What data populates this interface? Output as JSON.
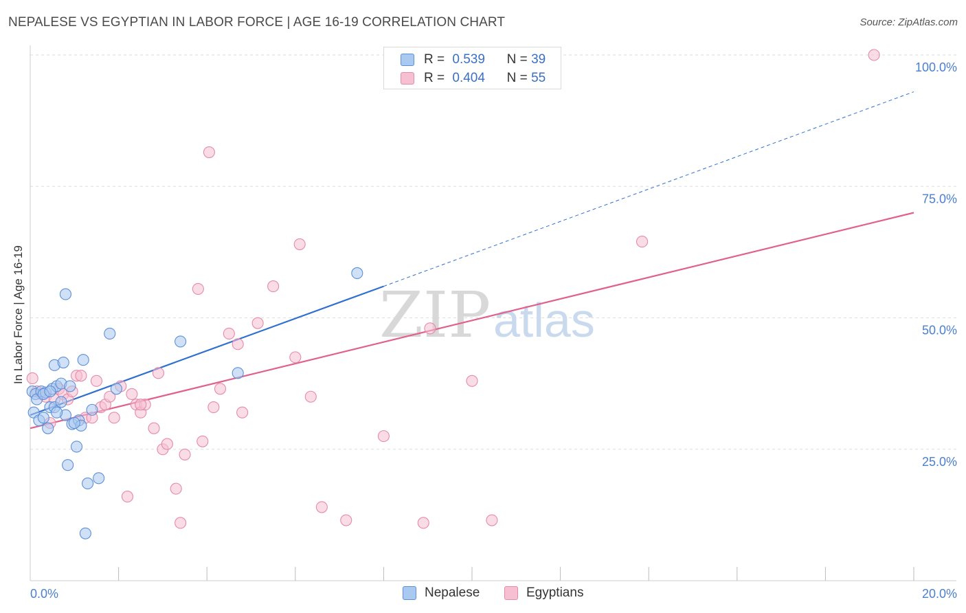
{
  "title": "NEPALESE VS EGYPTIAN IN LABOR FORCE | AGE 16-19 CORRELATION CHART",
  "source": "Source: ZipAtlas.com",
  "watermark": {
    "zip": "ZIP",
    "atlas": "atlas"
  },
  "colors": {
    "nepalese_fill": "#a9c9f0",
    "nepalese_stroke": "#5b8fd6",
    "nepalese_line": "#2f6fd0",
    "egyptian_fill": "#f6bfd2",
    "egyptian_stroke": "#e58aa8",
    "egyptian_line": "#e0608e",
    "tick_label": "#4a7fd0",
    "grid": "#dddddd"
  },
  "legend": {
    "rows": [
      {
        "r_label": "R =",
        "r_value": "0.539",
        "n_label": "N =",
        "n_value": "39"
      },
      {
        "r_label": "R =",
        "r_value": "0.404",
        "n_label": "N =",
        "n_value": "55"
      }
    ],
    "bottom": [
      "Nepalese",
      "Egyptians"
    ]
  },
  "chart_data": {
    "type": "scatter",
    "title": "NEPALESE VS EGYPTIAN IN LABOR FORCE | AGE 16-19 CORRELATION CHART",
    "xlabel": "",
    "ylabel": "In Labor Force | Age 16-19",
    "xlim": [
      0,
      20
    ],
    "ylim": [
      0,
      100
    ],
    "x_tick_labels": [
      {
        "value": 0,
        "label": "0.0%"
      },
      {
        "value": 20,
        "label": "20.0%"
      }
    ],
    "y_tick_labels": [
      {
        "value": 25,
        "label": "25.0%"
      },
      {
        "value": 50,
        "label": "50.0%"
      },
      {
        "value": 75,
        "label": "75.0%"
      },
      {
        "value": 100,
        "label": "100.0%"
      }
    ],
    "x_minor_ticks": [
      2,
      4,
      6,
      8,
      10,
      12,
      14,
      16,
      18
    ],
    "grid": true,
    "series": [
      {
        "name": "Nepalese",
        "r": 0.539,
        "n": 39,
        "points": [
          [
            0.05,
            36.0
          ],
          [
            0.08,
            32.0
          ],
          [
            0.12,
            35.5
          ],
          [
            0.15,
            34.5
          ],
          [
            0.2,
            30.5
          ],
          [
            0.25,
            36.0
          ],
          [
            0.3,
            31.0
          ],
          [
            0.35,
            35.8
          ],
          [
            0.4,
            29.0
          ],
          [
            0.45,
            33.0
          ],
          [
            0.5,
            36.5
          ],
          [
            0.55,
            33.0
          ],
          [
            0.55,
            41.0
          ],
          [
            0.6,
            37.0
          ],
          [
            0.7,
            37.5
          ],
          [
            0.7,
            34.0
          ],
          [
            0.75,
            41.5
          ],
          [
            0.8,
            31.5
          ],
          [
            0.8,
            54.5
          ],
          [
            0.85,
            22.0
          ],
          [
            0.9,
            37.0
          ],
          [
            0.95,
            29.8
          ],
          [
            1.05,
            25.5
          ],
          [
            1.1,
            30.5
          ],
          [
            1.15,
            29.5
          ],
          [
            1.2,
            42.0
          ],
          [
            1.25,
            9.0
          ],
          [
            1.3,
            18.5
          ],
          [
            1.4,
            32.5
          ],
          [
            1.55,
            19.5
          ],
          [
            1.8,
            47.0
          ],
          [
            1.95,
            36.5
          ],
          [
            3.4,
            45.5
          ],
          [
            4.7,
            39.5
          ],
          [
            7.4,
            58.5
          ],
          [
            0.3,
            35.5
          ],
          [
            0.6,
            32.0
          ],
          [
            0.45,
            36.0
          ],
          [
            1.0,
            30.0
          ]
        ],
        "trend": {
          "x0": 0,
          "y0": 31.5,
          "x1": 8.0,
          "y1": 56.0,
          "dashed_to_x": 20,
          "dashed_to_y": 93.0
        }
      },
      {
        "name": "Egyptians",
        "r": 0.404,
        "n": 55,
        "points": [
          [
            0.05,
            38.5
          ],
          [
            0.15,
            36.0
          ],
          [
            0.25,
            35.5
          ],
          [
            0.35,
            35.0
          ],
          [
            0.45,
            30.0
          ],
          [
            0.55,
            34.5
          ],
          [
            0.65,
            36.5
          ],
          [
            0.75,
            35.5
          ],
          [
            0.85,
            34.5
          ],
          [
            0.95,
            36.0
          ],
          [
            1.05,
            39.0
          ],
          [
            1.15,
            39.0
          ],
          [
            1.25,
            31.0
          ],
          [
            1.4,
            31.0
          ],
          [
            1.5,
            38.0
          ],
          [
            1.6,
            33.0
          ],
          [
            1.7,
            33.5
          ],
          [
            1.8,
            35.0
          ],
          [
            1.9,
            31.0
          ],
          [
            2.05,
            37.0
          ],
          [
            2.2,
            16.0
          ],
          [
            2.3,
            35.5
          ],
          [
            2.4,
            33.5
          ],
          [
            2.5,
            32.0
          ],
          [
            2.6,
            33.5
          ],
          [
            2.8,
            29.0
          ],
          [
            2.9,
            39.5
          ],
          [
            3.0,
            25.0
          ],
          [
            3.1,
            26.0
          ],
          [
            3.3,
            17.5
          ],
          [
            3.4,
            11.0
          ],
          [
            3.5,
            24.0
          ],
          [
            3.8,
            55.5
          ],
          [
            3.9,
            26.5
          ],
          [
            4.05,
            81.5
          ],
          [
            4.15,
            33.0
          ],
          [
            4.3,
            36.5
          ],
          [
            4.5,
            47.0
          ],
          [
            4.7,
            45.0
          ],
          [
            4.8,
            32.0
          ],
          [
            5.15,
            49.0
          ],
          [
            5.5,
            56.0
          ],
          [
            6.0,
            42.5
          ],
          [
            6.1,
            64.0
          ],
          [
            6.35,
            35.0
          ],
          [
            6.6,
            14.0
          ],
          [
            7.15,
            11.5
          ],
          [
            8.0,
            27.5
          ],
          [
            8.9,
            11.0
          ],
          [
            9.05,
            48.0
          ],
          [
            10.0,
            38.0
          ],
          [
            10.45,
            11.5
          ],
          [
            13.85,
            64.5
          ],
          [
            19.1,
            100.0
          ],
          [
            2.5,
            33.5
          ]
        ],
        "trend": {
          "x0": 0,
          "y0": 29.0,
          "x1": 20,
          "y1": 70.0
        }
      }
    ]
  }
}
